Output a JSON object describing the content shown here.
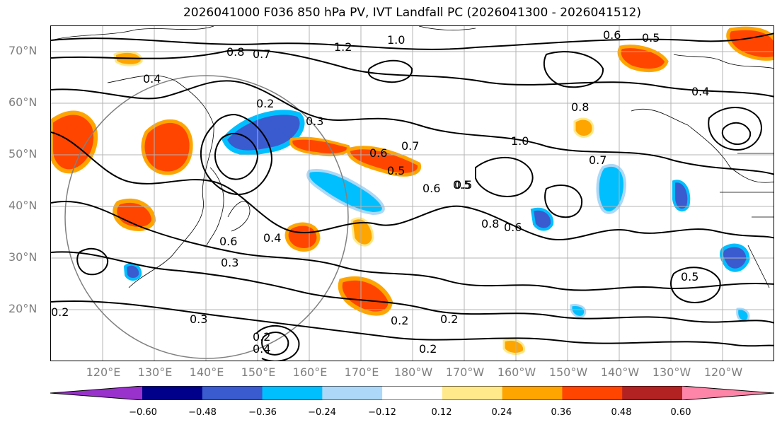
{
  "title": "2026041000 F036 850 hPa PV, IVT Landfall PC (2026041300 - 2026041512)",
  "lat_labels": [
    "70°N",
    "60°N",
    "50°N",
    "40°N",
    "30°N",
    "20°N"
  ],
  "lon_labels": [
    "120°E",
    "130°E",
    "140°E",
    "150°E",
    "160°E",
    "170°E",
    "180°W",
    "170°W",
    "160°W",
    "150°W",
    "140°W",
    "130°W",
    "120°W"
  ],
  "contour_labels": [
    "1.0",
    "1.2",
    "0.8",
    "0.7",
    "0.6",
    "0.5",
    "0.4",
    "0.3",
    "0.2",
    "0.6",
    "0.5",
    "0.7",
    "0.6",
    "0.5",
    "0.8",
    "1.0",
    "0.8",
    "0.7",
    "0.4",
    "0.6",
    "0.4",
    "0.3",
    "0.3",
    "0.2",
    "0.2",
    "0.2",
    "0.2",
    "0.4",
    "0.5",
    "0.5",
    "0.6",
    "0.2"
  ],
  "colorbar": {
    "ticks": [
      "−0.60",
      "−0.48",
      "−0.36",
      "−0.24",
      "−0.12",
      "0.12",
      "0.24",
      "0.36",
      "0.48",
      "0.60"
    ],
    "colors": [
      "#9932CC",
      "#00008B",
      "#3A5BD0",
      "#00BFFF",
      "#ADD8F7",
      "#FFFFFF",
      "#FFE98A",
      "#FFA500",
      "#FF4500",
      "#B22222",
      "#FF85A8"
    ]
  }
}
